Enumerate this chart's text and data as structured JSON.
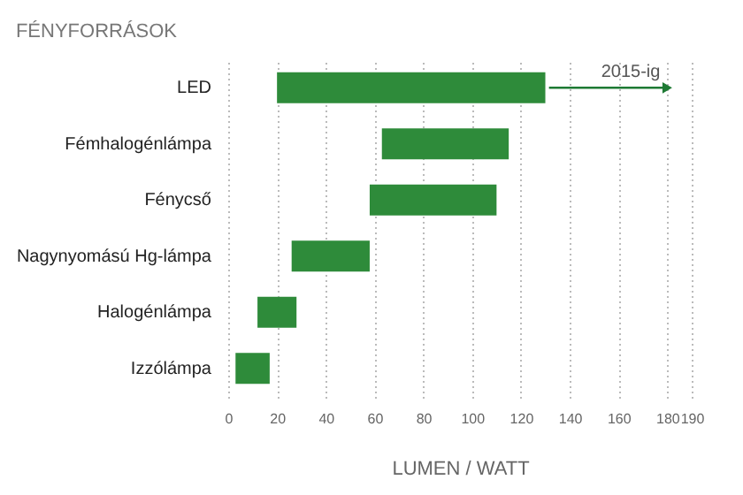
{
  "chart_data": {
    "type": "bar",
    "orientation": "horizontal",
    "title": "FÉNYFORRÁSOK",
    "xlabel": "LUMEN / WATT",
    "categories": [
      "LED",
      "Fémhalogénlámpa",
      "Fénycső",
      "Nagynyomású Hg-lámpa",
      "Halogénlámpa",
      "Izzólámpa"
    ],
    "base": [
      20,
      63,
      58,
      26,
      12,
      3
    ],
    "values": [
      110,
      52,
      52,
      32,
      16,
      14
    ],
    "color": "#2e8b3a",
    "xlim": [
      0,
      190
    ],
    "xticks": [
      0,
      20,
      40,
      60,
      80,
      100,
      120,
      140,
      160,
      180,
      190
    ],
    "grid": "x",
    "annotations": [
      {
        "text": "2015-ig",
        "x": 180,
        "y": "LED"
      }
    ]
  }
}
